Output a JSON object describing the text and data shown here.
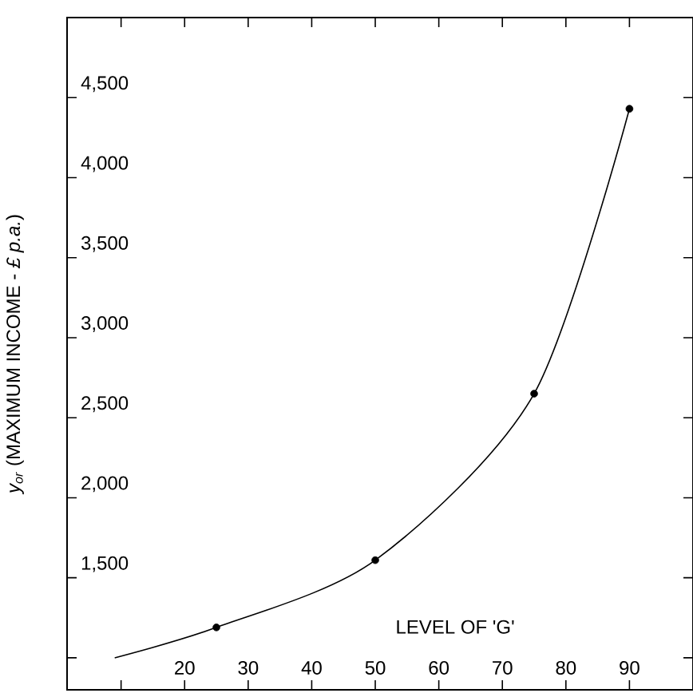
{
  "chart_data": {
    "type": "line",
    "xlabel": "LEVEL OF 'G'",
    "ylabel": "*y$_{or}$* (MAXIMUM INCOME - *£ p.a.*)",
    "xlim": [
      1.5,
      100
    ],
    "ylim": [
      800,
      5000
    ],
    "xticks": [
      {
        "value": 10,
        "label": null
      },
      20,
      30,
      40,
      50,
      60,
      70,
      80,
      90
    ],
    "yticks": [
      {
        "value": 1000,
        "label": null
      },
      {
        "value": 1500,
        "label": "1,500"
      },
      {
        "value": 2000,
        "label": "2,000"
      },
      {
        "value": 2500,
        "label": "2,500"
      },
      {
        "value": 3000,
        "label": "3,000"
      },
      {
        "value": 3500,
        "label": "3,500"
      },
      {
        "value": 4000,
        "label": "4,000"
      },
      {
        "value": 4500,
        "label": "4,500"
      }
    ],
    "grid": false,
    "series": [
      {
        "color": "#000000",
        "marker": "none",
        "line_style": "solid",
        "x": [
          9,
          25,
          50,
          75,
          90
        ],
        "values": [
          1000,
          1190,
          1610,
          2650,
          4430
        ]
      },
      {
        "type": "scatter",
        "color": "#000000",
        "marker": "circle",
        "x": [
          25,
          50,
          75,
          90
        ],
        "values": [
          1190,
          1610,
          2650,
          4430
        ]
      }
    ]
  }
}
